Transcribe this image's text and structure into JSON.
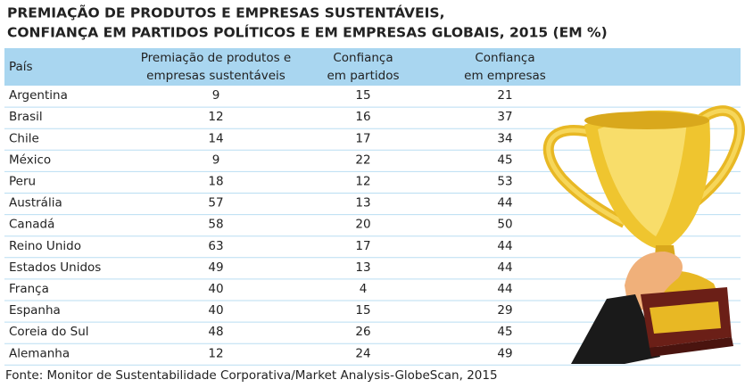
{
  "title": [
    "PREMIAÇÃO DE PRODUTOS E EMPRESAS SUSTENTÁVEIS,",
    "CONFIANÇA EM PARTIDOS POLÍTICOS E EM EMPRESAS GLOBAIS, 2015 (EM %)"
  ],
  "table": {
    "header": [
      [
        "País"
      ],
      [
        "Premiação de produtos e",
        "empresas sustentáveis"
      ],
      [
        "Confiança",
        "em partidos"
      ],
      [
        "Confiança",
        "em empresas"
      ]
    ],
    "rows": [
      [
        "Argentina",
        9,
        15,
        21
      ],
      [
        "Brasil",
        12,
        16,
        37
      ],
      [
        "Chile",
        14,
        17,
        34
      ],
      [
        "México",
        9,
        22,
        45
      ],
      [
        "Peru",
        18,
        12,
        53
      ],
      [
        "Austrália",
        57,
        13,
        44
      ],
      [
        "Canadá",
        58,
        20,
        50
      ],
      [
        "Reino Unido",
        63,
        17,
        44
      ],
      [
        "Estados Unidos",
        49,
        13,
        44
      ],
      [
        "França",
        40,
        4,
        44
      ],
      [
        "Espanha",
        40,
        15,
        29
      ],
      [
        "Coreia do Sul",
        48,
        26,
        45
      ],
      [
        "Alemanha",
        12,
        24,
        49
      ]
    ]
  },
  "footer": "Fonte: Monitor de Sustentabilidade Corporativa/Market Analysis-GlobeScan, 2015"
}
